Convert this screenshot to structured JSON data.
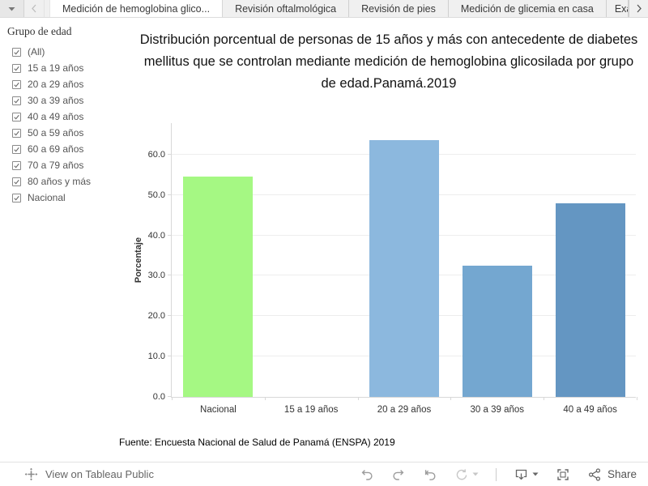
{
  "tab_bar": {
    "tabs": [
      {
        "label": "Medición de hemoglobina glico...",
        "active": true
      },
      {
        "label": "Revisión oftalmológica",
        "active": false
      },
      {
        "label": "Revisión de pies",
        "active": false
      },
      {
        "label": "Medición de glicemia en casa",
        "active": false
      },
      {
        "label": "Exá",
        "active": false,
        "truncated": true
      }
    ]
  },
  "filter": {
    "title": "Grupo de edad",
    "items": [
      {
        "label": "(All)",
        "checked": true
      },
      {
        "label": "15 a 19 años",
        "checked": true
      },
      {
        "label": "20 a 29 años",
        "checked": true
      },
      {
        "label": "30 a 39 años",
        "checked": true
      },
      {
        "label": "40 a 49 años",
        "checked": true
      },
      {
        "label": "50 a 59 años",
        "checked": true
      },
      {
        "label": "60 a 69 años",
        "checked": true
      },
      {
        "label": "70 a 79 años",
        "checked": true
      },
      {
        "label": "80 años y más",
        "checked": true
      },
      {
        "label": "Nacional",
        "checked": true
      }
    ]
  },
  "chart_data": {
    "type": "bar",
    "title": "Distribución porcentual de personas de 15 años y más con antecedente de diabetes mellitus que se controlan mediante medición de hemoglobina glicosilada por grupo de edad.Panamá.2019",
    "categories": [
      "Nacional",
      "15 a 19 años",
      "20 a 29 años",
      "30 a 39 años",
      "40 a 49 años"
    ],
    "values": [
      54.5,
      0.0,
      63.6,
      32.5,
      48.0
    ],
    "bar_colors": [
      "#a5f883",
      "#9ec5e8",
      "#8cb8de",
      "#74a7d0",
      "#6496c2"
    ],
    "xlabel": "",
    "ylabel": "Porcentaje",
    "yticks": [
      0,
      10,
      20,
      30,
      40,
      50,
      60
    ],
    "ytick_labels": [
      "0.0",
      "10.0",
      "20.0",
      "30.0",
      "40.0",
      "50.0",
      "60.0"
    ],
    "ylim": [
      0,
      68
    ],
    "grid": true,
    "legend": false
  },
  "footer": {
    "source": "Fuente: Encuesta Nacional de Salud de Panamá (ENSPA) 2019"
  },
  "toolbar": {
    "view_label": "View on Tableau Public",
    "share_label": "Share",
    "icons": [
      "tableau-logo",
      "undo",
      "redo",
      "reset",
      "refresh",
      "download",
      "fullscreen",
      "share"
    ]
  }
}
